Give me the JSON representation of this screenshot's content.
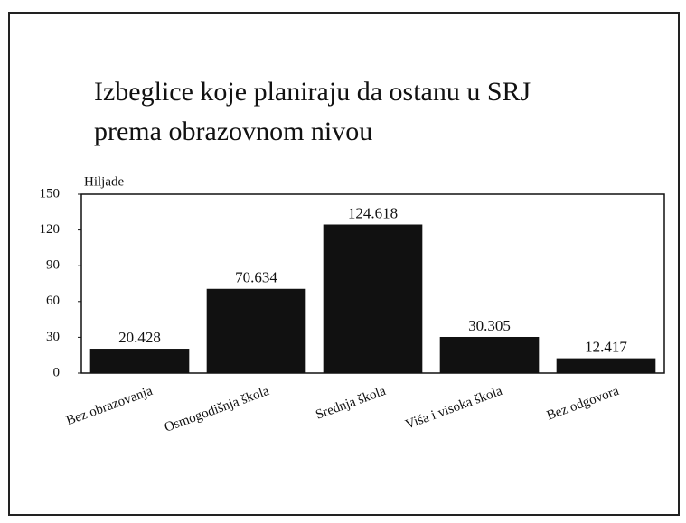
{
  "chart_data": {
    "type": "bar",
    "title": [
      "Izbeglice koje planiraju da ostanu u SRJ",
      "prema obrazovnom nivou"
    ],
    "y_label": "Hiljade",
    "categories": [
      "Bez obrazovanja",
      "Osmogodišnja škola",
      "Srednja škola",
      "Viša i visoka škola",
      "Bez odgovora"
    ],
    "values": [
      20.428,
      70.634,
      124.618,
      30.305,
      12.417
    ],
    "color": "#111111",
    "ylim": [
      0,
      150
    ],
    "yticks": [
      0,
      30,
      60,
      90,
      120,
      150
    ],
    "grid": false
  }
}
